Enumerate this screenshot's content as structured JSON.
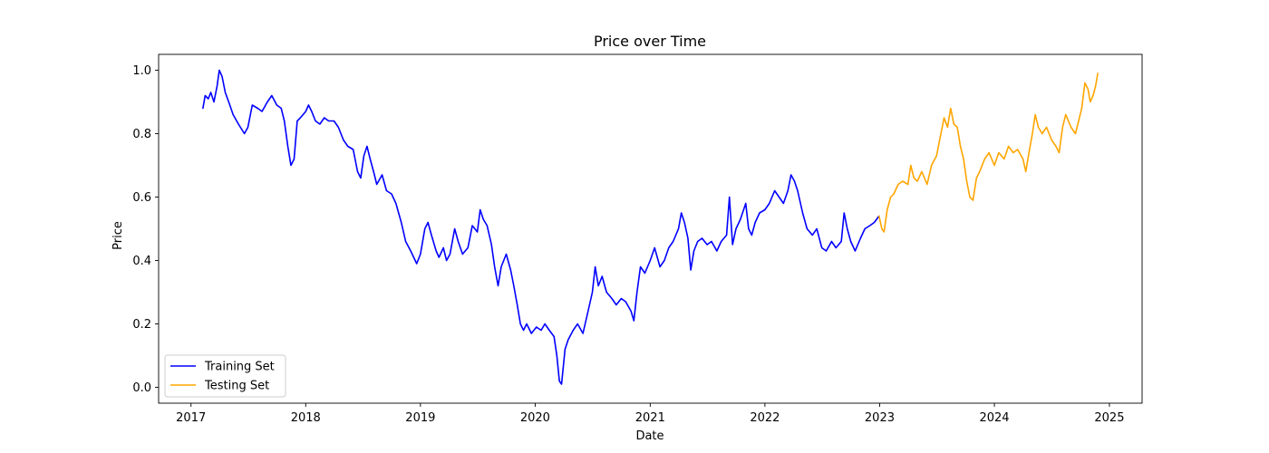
{
  "chart_data": {
    "type": "line",
    "title": "Price over Time",
    "xlabel": "Date",
    "ylabel": "Price",
    "x_type": "date",
    "xlim": [
      "2016-09-20",
      "2025-04-15"
    ],
    "ylim": [
      -0.05,
      1.05
    ],
    "x_ticks": [
      "2017-01-01",
      "2018-01-01",
      "2019-01-01",
      "2020-01-01",
      "2021-01-01",
      "2022-01-01",
      "2023-01-01",
      "2024-01-01",
      "2025-01-01"
    ],
    "x_tick_labels": [
      "2017",
      "2018",
      "2019",
      "2020",
      "2021",
      "2022",
      "2023",
      "2024",
      "2025"
    ],
    "y_ticks": [
      0.0,
      0.2,
      0.4,
      0.6,
      0.8,
      1.0
    ],
    "y_tick_labels": [
      "0.0",
      "0.2",
      "0.4",
      "0.6",
      "0.8",
      "1.0"
    ],
    "grid": false,
    "legend_position": "bottom-left",
    "series": [
      {
        "name": "Training Set",
        "color": "#0000ff",
        "points": [
          [
            "2017-02-08",
            0.88
          ],
          [
            "2017-02-15",
            0.92
          ],
          [
            "2017-02-25",
            0.91
          ],
          [
            "2017-03-05",
            0.93
          ],
          [
            "2017-03-15",
            0.9
          ],
          [
            "2017-03-25",
            0.95
          ],
          [
            "2017-04-01",
            1.0
          ],
          [
            "2017-04-10",
            0.98
          ],
          [
            "2017-04-20",
            0.93
          ],
          [
            "2017-05-01",
            0.9
          ],
          [
            "2017-05-15",
            0.86
          ],
          [
            "2017-06-01",
            0.83
          ],
          [
            "2017-06-20",
            0.8
          ],
          [
            "2017-07-01",
            0.82
          ],
          [
            "2017-07-15",
            0.89
          ],
          [
            "2017-08-01",
            0.88
          ],
          [
            "2017-08-15",
            0.87
          ],
          [
            "2017-09-01",
            0.9
          ],
          [
            "2017-09-15",
            0.92
          ],
          [
            "2017-10-01",
            0.89
          ],
          [
            "2017-10-15",
            0.88
          ],
          [
            "2017-10-25",
            0.84
          ],
          [
            "2017-11-05",
            0.76
          ],
          [
            "2017-11-15",
            0.7
          ],
          [
            "2017-11-25",
            0.72
          ],
          [
            "2017-12-05",
            0.84
          ],
          [
            "2017-12-15",
            0.85
          ],
          [
            "2018-01-01",
            0.87
          ],
          [
            "2018-01-10",
            0.89
          ],
          [
            "2018-01-20",
            0.87
          ],
          [
            "2018-02-01",
            0.84
          ],
          [
            "2018-02-15",
            0.83
          ],
          [
            "2018-03-01",
            0.85
          ],
          [
            "2018-03-15",
            0.84
          ],
          [
            "2018-04-01",
            0.84
          ],
          [
            "2018-04-15",
            0.82
          ],
          [
            "2018-05-01",
            0.78
          ],
          [
            "2018-05-15",
            0.76
          ],
          [
            "2018-06-01",
            0.75
          ],
          [
            "2018-06-15",
            0.68
          ],
          [
            "2018-06-25",
            0.66
          ],
          [
            "2018-07-05",
            0.73
          ],
          [
            "2018-07-15",
            0.76
          ],
          [
            "2018-07-25",
            0.72
          ],
          [
            "2018-08-05",
            0.68
          ],
          [
            "2018-08-15",
            0.64
          ],
          [
            "2018-09-01",
            0.67
          ],
          [
            "2018-09-15",
            0.62
          ],
          [
            "2018-10-01",
            0.61
          ],
          [
            "2018-10-15",
            0.58
          ],
          [
            "2018-11-01",
            0.52
          ],
          [
            "2018-11-15",
            0.46
          ],
          [
            "2018-12-01",
            0.43
          ],
          [
            "2018-12-20",
            0.39
          ],
          [
            "2019-01-01",
            0.42
          ],
          [
            "2019-01-15",
            0.5
          ],
          [
            "2019-01-25",
            0.52
          ],
          [
            "2019-02-05",
            0.48
          ],
          [
            "2019-02-20",
            0.43
          ],
          [
            "2019-03-01",
            0.41
          ],
          [
            "2019-03-15",
            0.44
          ],
          [
            "2019-03-25",
            0.4
          ],
          [
            "2019-04-05",
            0.42
          ],
          [
            "2019-04-20",
            0.5
          ],
          [
            "2019-05-01",
            0.46
          ],
          [
            "2019-05-15",
            0.42
          ],
          [
            "2019-06-01",
            0.44
          ],
          [
            "2019-06-15",
            0.51
          ],
          [
            "2019-07-01",
            0.49
          ],
          [
            "2019-07-10",
            0.56
          ],
          [
            "2019-07-20",
            0.53
          ],
          [
            "2019-08-01",
            0.51
          ],
          [
            "2019-08-15",
            0.45
          ],
          [
            "2019-08-25",
            0.38
          ],
          [
            "2019-09-05",
            0.32
          ],
          [
            "2019-09-15",
            0.38
          ],
          [
            "2019-10-01",
            0.42
          ],
          [
            "2019-10-15",
            0.37
          ],
          [
            "2019-10-25",
            0.32
          ],
          [
            "2019-11-05",
            0.26
          ],
          [
            "2019-11-15",
            0.2
          ],
          [
            "2019-11-25",
            0.18
          ],
          [
            "2019-12-05",
            0.2
          ],
          [
            "2019-12-20",
            0.17
          ],
          [
            "2020-01-05",
            0.19
          ],
          [
            "2020-01-20",
            0.18
          ],
          [
            "2020-02-01",
            0.2
          ],
          [
            "2020-02-15",
            0.18
          ],
          [
            "2020-03-01",
            0.16
          ],
          [
            "2020-03-10",
            0.1
          ],
          [
            "2020-03-18",
            0.02
          ],
          [
            "2020-03-25",
            0.01
          ],
          [
            "2020-04-05",
            0.12
          ],
          [
            "2020-04-15",
            0.15
          ],
          [
            "2020-05-01",
            0.18
          ],
          [
            "2020-05-15",
            0.2
          ],
          [
            "2020-06-01",
            0.17
          ],
          [
            "2020-06-15",
            0.23
          ],
          [
            "2020-07-01",
            0.3
          ],
          [
            "2020-07-10",
            0.38
          ],
          [
            "2020-07-20",
            0.32
          ],
          [
            "2020-08-01",
            0.35
          ],
          [
            "2020-08-15",
            0.3
          ],
          [
            "2020-09-01",
            0.28
          ],
          [
            "2020-09-15",
            0.26
          ],
          [
            "2020-10-01",
            0.28
          ],
          [
            "2020-10-15",
            0.27
          ],
          [
            "2020-11-01",
            0.24
          ],
          [
            "2020-11-10",
            0.21
          ],
          [
            "2020-11-20",
            0.3
          ],
          [
            "2020-12-01",
            0.38
          ],
          [
            "2020-12-15",
            0.36
          ],
          [
            "2021-01-01",
            0.4
          ],
          [
            "2021-01-15",
            0.44
          ],
          [
            "2021-02-01",
            0.38
          ],
          [
            "2021-02-15",
            0.4
          ],
          [
            "2021-03-01",
            0.44
          ],
          [
            "2021-03-15",
            0.46
          ],
          [
            "2021-04-01",
            0.5
          ],
          [
            "2021-04-10",
            0.55
          ],
          [
            "2021-04-20",
            0.52
          ],
          [
            "2021-05-01",
            0.47
          ],
          [
            "2021-05-10",
            0.37
          ],
          [
            "2021-05-20",
            0.43
          ],
          [
            "2021-06-01",
            0.46
          ],
          [
            "2021-06-15",
            0.47
          ],
          [
            "2021-07-01",
            0.45
          ],
          [
            "2021-07-15",
            0.46
          ],
          [
            "2021-08-01",
            0.43
          ],
          [
            "2021-08-15",
            0.46
          ],
          [
            "2021-09-01",
            0.48
          ],
          [
            "2021-09-10",
            0.6
          ],
          [
            "2021-09-20",
            0.45
          ],
          [
            "2021-10-01",
            0.5
          ],
          [
            "2021-10-15",
            0.53
          ],
          [
            "2021-11-01",
            0.58
          ],
          [
            "2021-11-10",
            0.5
          ],
          [
            "2021-11-20",
            0.48
          ],
          [
            "2021-12-01",
            0.52
          ],
          [
            "2021-12-15",
            0.55
          ],
          [
            "2022-01-01",
            0.56
          ],
          [
            "2022-01-15",
            0.58
          ],
          [
            "2022-02-01",
            0.62
          ],
          [
            "2022-02-15",
            0.6
          ],
          [
            "2022-03-01",
            0.58
          ],
          [
            "2022-03-15",
            0.62
          ],
          [
            "2022-03-25",
            0.67
          ],
          [
            "2022-04-05",
            0.65
          ],
          [
            "2022-04-15",
            0.62
          ],
          [
            "2022-05-01",
            0.55
          ],
          [
            "2022-05-15",
            0.5
          ],
          [
            "2022-06-01",
            0.48
          ],
          [
            "2022-06-15",
            0.5
          ],
          [
            "2022-07-01",
            0.44
          ],
          [
            "2022-07-15",
            0.43
          ],
          [
            "2022-08-01",
            0.46
          ],
          [
            "2022-08-15",
            0.44
          ],
          [
            "2022-09-01",
            0.46
          ],
          [
            "2022-09-10",
            0.55
          ],
          [
            "2022-09-20",
            0.5
          ],
          [
            "2022-10-01",
            0.46
          ],
          [
            "2022-10-15",
            0.43
          ],
          [
            "2022-11-01",
            0.47
          ],
          [
            "2022-11-15",
            0.5
          ],
          [
            "2022-12-01",
            0.51
          ],
          [
            "2022-12-15",
            0.52
          ],
          [
            "2022-12-30",
            0.54
          ]
        ]
      },
      {
        "name": "Testing Set",
        "color": "#ffa500",
        "points": [
          [
            "2022-12-30",
            0.54
          ],
          [
            "2023-01-08",
            0.5
          ],
          [
            "2023-01-15",
            0.49
          ],
          [
            "2023-01-25",
            0.56
          ],
          [
            "2023-02-05",
            0.6
          ],
          [
            "2023-02-15",
            0.61
          ],
          [
            "2023-03-01",
            0.64
          ],
          [
            "2023-03-15",
            0.65
          ],
          [
            "2023-04-01",
            0.64
          ],
          [
            "2023-04-10",
            0.7
          ],
          [
            "2023-04-20",
            0.66
          ],
          [
            "2023-05-01",
            0.65
          ],
          [
            "2023-05-15",
            0.68
          ],
          [
            "2023-06-01",
            0.64
          ],
          [
            "2023-06-15",
            0.7
          ],
          [
            "2023-07-01",
            0.73
          ],
          [
            "2023-07-15",
            0.8
          ],
          [
            "2023-07-25",
            0.85
          ],
          [
            "2023-08-05",
            0.82
          ],
          [
            "2023-08-15",
            0.88
          ],
          [
            "2023-08-25",
            0.83
          ],
          [
            "2023-09-05",
            0.82
          ],
          [
            "2023-09-15",
            0.76
          ],
          [
            "2023-09-25",
            0.72
          ],
          [
            "2023-10-05",
            0.65
          ],
          [
            "2023-10-15",
            0.6
          ],
          [
            "2023-10-25",
            0.59
          ],
          [
            "2023-11-05",
            0.66
          ],
          [
            "2023-11-15",
            0.68
          ],
          [
            "2023-12-01",
            0.72
          ],
          [
            "2023-12-15",
            0.74
          ],
          [
            "2024-01-01",
            0.7
          ],
          [
            "2024-01-15",
            0.74
          ],
          [
            "2024-02-01",
            0.72
          ],
          [
            "2024-02-15",
            0.76
          ],
          [
            "2024-03-01",
            0.74
          ],
          [
            "2024-03-15",
            0.75
          ],
          [
            "2024-04-01",
            0.72
          ],
          [
            "2024-04-10",
            0.68
          ],
          [
            "2024-04-20",
            0.74
          ],
          [
            "2024-05-01",
            0.8
          ],
          [
            "2024-05-10",
            0.86
          ],
          [
            "2024-05-20",
            0.82
          ],
          [
            "2024-06-01",
            0.8
          ],
          [
            "2024-06-15",
            0.82
          ],
          [
            "2024-07-01",
            0.78
          ],
          [
            "2024-07-15",
            0.76
          ],
          [
            "2024-07-25",
            0.74
          ],
          [
            "2024-08-05",
            0.82
          ],
          [
            "2024-08-15",
            0.86
          ],
          [
            "2024-09-01",
            0.82
          ],
          [
            "2024-09-15",
            0.8
          ],
          [
            "2024-09-25",
            0.84
          ],
          [
            "2024-10-05",
            0.88
          ],
          [
            "2024-10-15",
            0.96
          ],
          [
            "2024-10-25",
            0.94
          ],
          [
            "2024-11-01",
            0.9
          ],
          [
            "2024-11-10",
            0.92
          ],
          [
            "2024-11-18",
            0.95
          ],
          [
            "2024-11-25",
            0.99
          ]
        ]
      }
    ]
  }
}
